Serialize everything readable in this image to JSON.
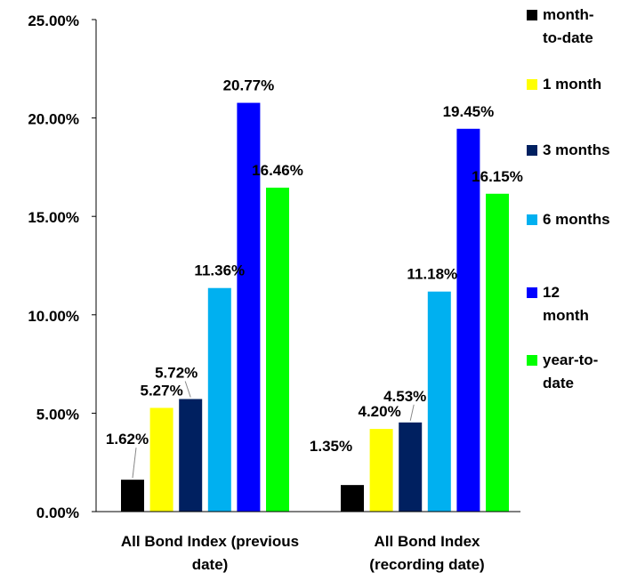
{
  "chart_data": {
    "type": "bar",
    "categories": [
      "All Bond Index (previous date)",
      "All Bond Index (recording date)"
    ],
    "category_label_lines": [
      [
        "All Bond Index (previous",
        "date)"
      ],
      [
        "All Bond Index",
        "(recording date)"
      ]
    ],
    "series": [
      {
        "name": "month-to-date",
        "legend_lines": [
          "month-",
          "to-date"
        ],
        "color": "#000000",
        "values": [
          1.62,
          1.35
        ],
        "labels": [
          "1.62%",
          "1.35%"
        ]
      },
      {
        "name": "1 month",
        "legend_lines": [
          "1 month"
        ],
        "color": "#FFFF00",
        "values": [
          5.27,
          4.2
        ],
        "labels": [
          "5.27%",
          "4.20%"
        ]
      },
      {
        "name": "3 months",
        "legend_lines": [
          "3 months"
        ],
        "color": "#002060",
        "values": [
          5.72,
          4.53
        ],
        "labels": [
          "5.72%",
          "4.53%"
        ]
      },
      {
        "name": "6 months",
        "legend_lines": [
          "6 months"
        ],
        "color": "#00B0F0",
        "values": [
          11.36,
          11.18
        ],
        "labels": [
          "11.36%",
          "11.18%"
        ]
      },
      {
        "name": "12 month",
        "legend_lines": [
          "12",
          "month"
        ],
        "color": "#0000FF",
        "values": [
          20.77,
          19.45
        ],
        "labels": [
          "20.77%",
          "19.45%"
        ]
      },
      {
        "name": "year-to-date",
        "legend_lines": [
          "year-to-",
          "date"
        ],
        "color": "#00FF00",
        "values": [
          16.46,
          16.15
        ],
        "labels": [
          "16.46%",
          "16.15%"
        ]
      }
    ],
    "ylim": [
      0,
      25
    ],
    "yticks": [
      0,
      5,
      10,
      15,
      20,
      25
    ],
    "ytick_labels": [
      "0.00%",
      "5.00%",
      "10.00%",
      "15.00%",
      "20.00%",
      "25.00%"
    ],
    "grid": false,
    "legend_position": "right",
    "xlabel": "",
    "ylabel": "",
    "title": ""
  }
}
